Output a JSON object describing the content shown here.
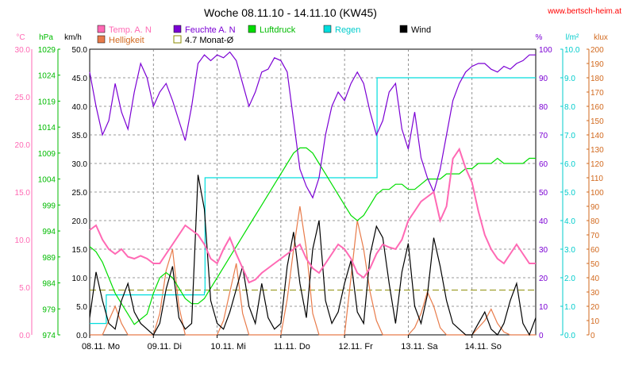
{
  "chart_data": {
    "type": "line",
    "title": "Woche 08.11.10 - 14.11.10 (KW45)",
    "watermark": "www.bertsch-heim.at",
    "x_labels": [
      "08.11. Mo",
      "09.11. Di",
      "10.11. Mi",
      "11.11. Do",
      "12.11. Fr",
      "13.11. Sa",
      "14.11. So"
    ],
    "axes": [
      {
        "id": "temp",
        "unit": "°C",
        "min": 0,
        "max": 30,
        "ticks": [
          0.0,
          5.0,
          10.0,
          15.0,
          20.0,
          25.0,
          30.0
        ],
        "labels": [
          "0.0",
          "5.0",
          "10.0",
          "15.0",
          "20.0",
          "25.0",
          "30.0"
        ],
        "color": "#ff69b4"
      },
      {
        "id": "press",
        "unit": "hPa",
        "min": 974,
        "max": 1029,
        "ticks": [
          974,
          979,
          984,
          989,
          994,
          999,
          1004,
          1009,
          1014,
          1019,
          1024,
          1029
        ],
        "labels": [
          "974",
          "979",
          "984",
          "989",
          "994",
          "999",
          "1004",
          "1009",
          "1014",
          "1019",
          "1024",
          "1029"
        ],
        "color": "#00bb00"
      },
      {
        "id": "wind",
        "unit": "km/h",
        "min": 0,
        "max": 50,
        "ticks": [
          0,
          5,
          10,
          15,
          20,
          25,
          30,
          35,
          40,
          45,
          50
        ],
        "labels": [
          "0.0",
          "5.0",
          "10.0",
          "15.0",
          "20.0",
          "25.0",
          "30.0",
          "35.0",
          "40.0",
          "45.0",
          "50.0"
        ],
        "color": "#000000"
      },
      {
        "id": "hum",
        "unit": "%",
        "min": 0,
        "max": 100,
        "ticks": [
          0,
          10,
          20,
          30,
          40,
          50,
          60,
          70,
          80,
          90,
          100
        ],
        "labels": [
          "0",
          "10",
          "20",
          "30",
          "40",
          "50",
          "60",
          "70",
          "80",
          "90",
          "100"
        ],
        "color": "#7b00d4"
      },
      {
        "id": "rain",
        "unit": "l/m²",
        "min": 0,
        "max": 10,
        "ticks": [
          0,
          1,
          2,
          3,
          4,
          5,
          6,
          7,
          8,
          9,
          10
        ],
        "labels": [
          "0.0",
          "1.0",
          "2.0",
          "3.0",
          "4.0",
          "5.0",
          "6.0",
          "7.0",
          "8.0",
          "9.0",
          "10.0"
        ],
        "color": "#00cccc"
      },
      {
        "id": "lux",
        "unit": "klux",
        "min": 0,
        "max": 200,
        "ticks": [
          0,
          10,
          20,
          30,
          40,
          50,
          60,
          70,
          80,
          90,
          100,
          110,
          120,
          130,
          140,
          150,
          160,
          170,
          180,
          190,
          200
        ],
        "labels": [
          "0",
          "10",
          "20",
          "30",
          "40",
          "50",
          "60",
          "70",
          "80",
          "90",
          "100",
          "110",
          "120",
          "130",
          "140",
          "150",
          "160",
          "170",
          "180",
          "190",
          "200"
        ],
        "color": "#d2691e"
      }
    ],
    "legend": [
      {
        "label": "Temp. A. N",
        "color": "#ff69b4",
        "type": "filled"
      },
      {
        "label": "Helligkeit",
        "color": "#e87b4a",
        "type": "filled"
      },
      {
        "label": "Feuchte A. N",
        "color": "#7b00d4",
        "type": "filled"
      },
      {
        "label": "4.7 Monat-Ø",
        "color": "#8b8b00",
        "type": "outline"
      },
      {
        "label": "Luftdruck",
        "color": "#00dd00",
        "type": "filled"
      },
      {
        "label": "Regen",
        "color": "#00dddd",
        "type": "filled"
      },
      {
        "label": "Wind",
        "color": "#000000",
        "type": "filled"
      }
    ],
    "monthly_avg_temp": 4.7,
    "series": [
      {
        "id": "temp",
        "axis": "temp",
        "color": "#ff69b4",
        "x": [
          0,
          0.1,
          0.2,
          0.3,
          0.4,
          0.5,
          0.6,
          0.7,
          0.8,
          0.9,
          1.0,
          1.1,
          1.2,
          1.3,
          1.4,
          1.5,
          1.6,
          1.7,
          1.8,
          1.9,
          2.0,
          2.1,
          2.2,
          2.3,
          2.4,
          2.5,
          2.6,
          2.7,
          2.8,
          2.9,
          3.0,
          3.1,
          3.2,
          3.3,
          3.4,
          3.5,
          3.6,
          3.7,
          3.8,
          3.9,
          4.0,
          4.1,
          4.2,
          4.3,
          4.4,
          4.5,
          4.6,
          4.7,
          4.8,
          4.9,
          5.0,
          5.1,
          5.2,
          5.3,
          5.4,
          5.5,
          5.6,
          5.7,
          5.8,
          5.9,
          6.0,
          6.1,
          6.2,
          6.3,
          6.4,
          6.5,
          6.6,
          6.7,
          6.8,
          6.9,
          7.0
        ],
        "y": [
          11.0,
          11.5,
          10.0,
          9.0,
          8.5,
          9.0,
          8.2,
          8.0,
          8.3,
          8.0,
          7.5,
          7.5,
          8.5,
          9.5,
          10.5,
          11.5,
          11.0,
          10.5,
          9.5,
          8.0,
          7.5,
          9.0,
          10.2,
          8.5,
          7.0,
          5.5,
          5.8,
          6.5,
          7.0,
          7.5,
          8.0,
          8.5,
          9.0,
          9.5,
          8.0,
          7.0,
          6.5,
          7.5,
          8.5,
          9.5,
          9.0,
          8.0,
          6.5,
          6.0,
          7.0,
          8.5,
          9.5,
          9.2,
          9.0,
          10.0,
          12.0,
          13.0,
          14.0,
          14.5,
          15.0,
          12.0,
          13.5,
          18.5,
          19.5,
          17.5,
          16.0,
          13.0,
          10.5,
          9.0,
          8.0,
          7.5,
          8.5,
          9.5,
          8.5,
          7.5,
          7.5
        ]
      },
      {
        "id": "hum",
        "axis": "hum",
        "color": "#7b00d4",
        "x": [
          0,
          0.1,
          0.2,
          0.3,
          0.4,
          0.5,
          0.6,
          0.7,
          0.8,
          0.9,
          1.0,
          1.1,
          1.2,
          1.3,
          1.4,
          1.5,
          1.6,
          1.7,
          1.8,
          1.9,
          2.0,
          2.1,
          2.2,
          2.3,
          2.4,
          2.5,
          2.6,
          2.7,
          2.8,
          2.9,
          3.0,
          3.1,
          3.2,
          3.3,
          3.4,
          3.5,
          3.6,
          3.7,
          3.8,
          3.9,
          4.0,
          4.1,
          4.2,
          4.3,
          4.4,
          4.5,
          4.6,
          4.7,
          4.8,
          4.9,
          5.0,
          5.1,
          5.2,
          5.3,
          5.4,
          5.5,
          5.6,
          5.7,
          5.8,
          5.9,
          6.0,
          6.1,
          6.2,
          6.3,
          6.4,
          6.5,
          6.6,
          6.7,
          6.8,
          6.9,
          7.0
        ],
        "y": [
          92,
          80,
          70,
          75,
          88,
          78,
          72,
          85,
          95,
          90,
          80,
          85,
          88,
          82,
          75,
          68,
          80,
          95,
          98,
          96,
          98,
          97,
          99,
          96,
          88,
          80,
          85,
          92,
          93,
          97,
          96,
          92,
          75,
          58,
          52,
          48,
          55,
          70,
          80,
          85,
          82,
          88,
          92,
          88,
          78,
          70,
          75,
          85,
          88,
          72,
          65,
          78,
          62,
          55,
          50,
          58,
          70,
          82,
          88,
          92,
          94,
          95,
          95,
          93,
          92,
          94,
          93,
          95,
          96,
          98,
          98
        ]
      },
      {
        "id": "press",
        "axis": "press",
        "color": "#00dd00",
        "x": [
          0,
          0.1,
          0.2,
          0.3,
          0.4,
          0.5,
          0.6,
          0.7,
          0.8,
          0.9,
          1.0,
          1.1,
          1.2,
          1.3,
          1.4,
          1.5,
          1.6,
          1.7,
          1.8,
          1.9,
          2.0,
          2.1,
          2.2,
          2.3,
          2.4,
          2.5,
          2.6,
          2.7,
          2.8,
          2.9,
          3.0,
          3.1,
          3.2,
          3.3,
          3.4,
          3.5,
          3.6,
          3.7,
          3.8,
          3.9,
          4.0,
          4.1,
          4.2,
          4.3,
          4.4,
          4.5,
          4.6,
          4.7,
          4.8,
          4.9,
          5.0,
          5.1,
          5.2,
          5.3,
          5.4,
          5.5,
          5.6,
          5.7,
          5.8,
          5.9,
          6.0,
          6.1,
          6.2,
          6.3,
          6.4,
          6.5,
          6.6,
          6.7,
          6.8,
          6.9,
          7.0
        ],
        "y": [
          991,
          990,
          988,
          985,
          982,
          980,
          978,
          976,
          977,
          978,
          982,
          985,
          986,
          985,
          983,
          981,
          980,
          980,
          981,
          983,
          985,
          987,
          989,
          991,
          993,
          995,
          997,
          999,
          1001,
          1003,
          1005,
          1007,
          1009,
          1010,
          1010,
          1009,
          1007,
          1005,
          1003,
          1001,
          999,
          997,
          996,
          997,
          999,
          1001,
          1002,
          1002,
          1003,
          1003,
          1002,
          1002,
          1003,
          1004,
          1004,
          1004,
          1005,
          1005,
          1005,
          1006,
          1006,
          1007,
          1007,
          1007,
          1008,
          1007,
          1007,
          1007,
          1007,
          1008,
          1008
        ]
      },
      {
        "id": "rain",
        "axis": "rain",
        "color": "#00dddd",
        "x": [
          0,
          0.25,
          0.26,
          0.4,
          0.41,
          1.49,
          1.8,
          1.81,
          4.5,
          4.51,
          4.55,
          4.56,
          7.0
        ],
        "y": [
          0.4,
          0.4,
          1.4,
          1.4,
          1.4,
          1.4,
          1.5,
          5.5,
          5.5,
          9.0,
          9.0,
          9.0,
          9.0
        ]
      },
      {
        "id": "wind",
        "axis": "wind",
        "color": "#000000",
        "x": [
          0,
          0.1,
          0.2,
          0.3,
          0.4,
          0.5,
          0.6,
          0.7,
          0.8,
          0.9,
          1.0,
          1.1,
          1.2,
          1.3,
          1.4,
          1.5,
          1.6,
          1.7,
          1.8,
          1.9,
          2.0,
          2.1,
          2.2,
          2.3,
          2.4,
          2.5,
          2.6,
          2.7,
          2.8,
          2.9,
          3.0,
          3.1,
          3.2,
          3.3,
          3.4,
          3.5,
          3.6,
          3.7,
          3.8,
          3.9,
          4.0,
          4.1,
          4.2,
          4.3,
          4.4,
          4.5,
          4.6,
          4.7,
          4.8,
          4.9,
          5.0,
          5.1,
          5.2,
          5.3,
          5.4,
          5.5,
          5.6,
          5.7,
          5.8,
          5.9,
          6.0,
          6.1,
          6.2,
          6.3,
          6.4,
          6.5,
          6.6,
          6.7,
          6.8,
          6.9,
          7.0
        ],
        "y": [
          3,
          11,
          6,
          2,
          1,
          6,
          9,
          4,
          2,
          1,
          0,
          2,
          8,
          12,
          3,
          1,
          2,
          28,
          22,
          6,
          2,
          1,
          4,
          8,
          12,
          5,
          2,
          9,
          3,
          1,
          2,
          12,
          18,
          9,
          3,
          15,
          20,
          6,
          2,
          4,
          9,
          13,
          4,
          2,
          14,
          19,
          17,
          9,
          2,
          11,
          16,
          5,
          2,
          7,
          17,
          12,
          6,
          2,
          1,
          0,
          0,
          2,
          4,
          1,
          0,
          2,
          6,
          9,
          2,
          0,
          3
        ]
      },
      {
        "id": "lux",
        "axis": "lux",
        "color": "#e87b4a",
        "x": [
          0,
          0.2,
          0.3,
          0.4,
          0.5,
          0.6,
          1.0,
          1.1,
          1.2,
          1.3,
          1.4,
          1.5,
          2.0,
          2.1,
          2.2,
          2.3,
          2.4,
          2.5,
          3.0,
          3.1,
          3.2,
          3.3,
          3.4,
          3.5,
          3.6,
          4.0,
          4.1,
          4.2,
          4.3,
          4.4,
          4.5,
          4.6,
          5.0,
          5.1,
          5.2,
          5.3,
          5.4,
          5.5,
          5.6,
          6.0,
          6.1,
          6.2,
          6.3,
          6.4,
          6.5,
          6.6,
          7.0
        ],
        "y": [
          0,
          0,
          10,
          20,
          8,
          0,
          0,
          15,
          45,
          60,
          20,
          0,
          0,
          10,
          30,
          50,
          15,
          0,
          0,
          25,
          60,
          90,
          60,
          15,
          0,
          0,
          40,
          80,
          60,
          30,
          10,
          0,
          0,
          5,
          15,
          30,
          20,
          5,
          0,
          0,
          5,
          10,
          18,
          8,
          2,
          0,
          0
        ]
      }
    ]
  }
}
